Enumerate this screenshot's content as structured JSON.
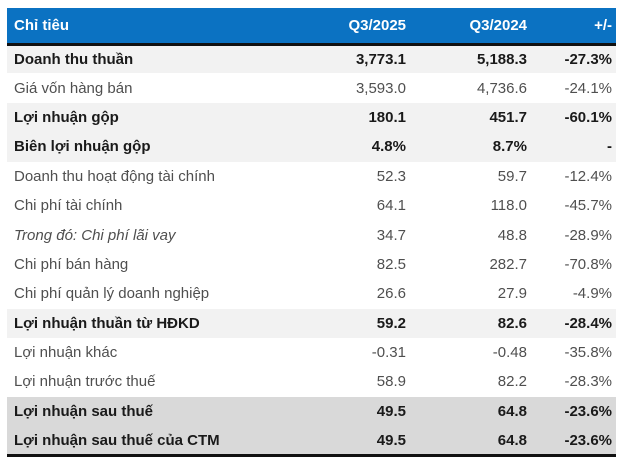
{
  "colors": {
    "header_bg": "#0b72c2",
    "header_text": "#ffffff",
    "highlight_row_bg": "#f2f2f2",
    "total_row_bg": "#d9d9d9",
    "rule_black": "#111111",
    "body_text": "#4f4f4f",
    "emphasis_text": "#1a1a1a"
  },
  "table": {
    "columns": [
      "Chỉ tiêu",
      "Q3/2025",
      "Q3/2024",
      "+/-"
    ],
    "rows": [
      {
        "label": "Doanh thu thuần",
        "q3_2025": "3,773.1",
        "q3_2024": "5,188.3",
        "change": "-27.3%"
      },
      {
        "label": "Giá vốn hàng bán",
        "q3_2025": "3,593.0",
        "q3_2024": "4,736.6",
        "change": "-24.1%"
      },
      {
        "label": "Lợi nhuận gộp",
        "q3_2025": "180.1",
        "q3_2024": "451.7",
        "change": "-60.1%"
      },
      {
        "label": "Biên lợi nhuận gộp",
        "q3_2025": "4.8%",
        "q3_2024": "8.7%",
        "change": "-"
      },
      {
        "label": "Doanh thu hoạt động tài chính",
        "q3_2025": "52.3",
        "q3_2024": "59.7",
        "change": "-12.4%"
      },
      {
        "label": "Chi phí tài chính",
        "q3_2025": "64.1",
        "q3_2024": "118.0",
        "change": "-45.7%"
      },
      {
        "label": "Trong đó: Chi phí lãi vay",
        "q3_2025": "34.7",
        "q3_2024": "48.8",
        "change": "-28.9%"
      },
      {
        "label": "Chi phí bán hàng",
        "q3_2025": "82.5",
        "q3_2024": "282.7",
        "change": "-70.8%"
      },
      {
        "label": "Chi phí quản lý doanh nghiệp",
        "q3_2025": "26.6",
        "q3_2024": "27.9",
        "change": "-4.9%"
      },
      {
        "label": "Lợi nhuận thuần từ HĐKD",
        "q3_2025": "59.2",
        "q3_2024": "82.6",
        "change": "-28.4%"
      },
      {
        "label": "Lợi nhuận khác",
        "q3_2025": "-0.31",
        "q3_2024": "-0.48",
        "change": "-35.8%"
      },
      {
        "label": "Lợi nhuận trước thuế",
        "q3_2025": "58.9",
        "q3_2024": "82.2",
        "change": "-28.3%"
      },
      {
        "label": "Lợi nhuận sau thuế",
        "q3_2025": "49.5",
        "q3_2024": "64.8",
        "change": "-23.6%"
      },
      {
        "label": "Lợi nhuận sau thuế của CTM",
        "q3_2025": "49.5",
        "q3_2024": "64.8",
        "change": "-23.6%"
      }
    ]
  }
}
